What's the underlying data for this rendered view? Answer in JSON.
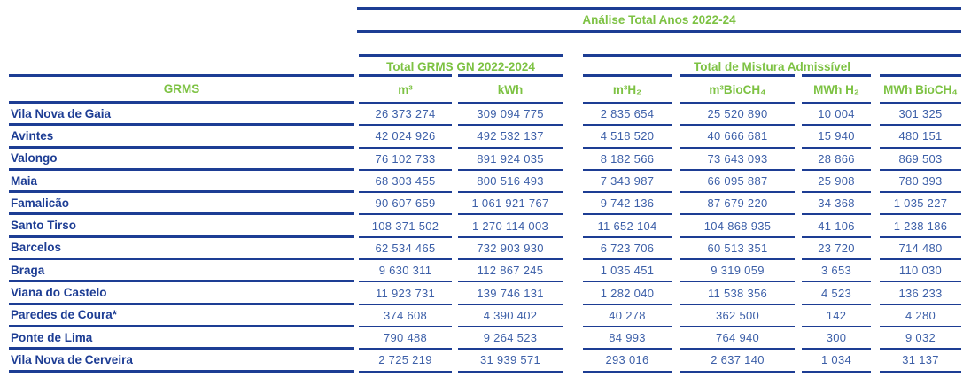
{
  "table": {
    "title": "Análise Total Anos 2022-24",
    "group_left": "Total GRMS GN 2022-2024",
    "group_right": "Total de Mistura Admissível",
    "columns": [
      "GRMS",
      "m³",
      "kWh",
      "m³H₂",
      "m³BioCH₄",
      "MWh H₂",
      "MWh BioCH₄"
    ],
    "rows": [
      [
        "Vila Nova de Gaia",
        "26 373 274",
        "309 094 775",
        "2 835 654",
        "25 520 890",
        "10 004",
        "301 325"
      ],
      [
        "Avintes",
        "42 024 926",
        "492 532 137",
        "4 518 520",
        "40 666 681",
        "15 940",
        "480 151"
      ],
      [
        "Valongo",
        "76 102 733",
        "891 924 035",
        "8 182 566",
        "73 643 093",
        "28 866",
        "869 503"
      ],
      [
        "Maia",
        "68 303 455",
        "800 516 493",
        "7 343 987",
        "66 095 887",
        "25 908",
        "780 393"
      ],
      [
        "Famalicão",
        "90 607 659",
        "1 061 921 767",
        "9 742 136",
        "87 679 220",
        "34 368",
        "1 035 227"
      ],
      [
        "Santo Tirso",
        "108 371 502",
        "1 270 114 003",
        "11 652 104",
        "104 868 935",
        "41 106",
        "1 238 186"
      ],
      [
        "Barcelos",
        "62 534 465",
        "732 903 930",
        "6 723 706",
        "60 513 351",
        "23 720",
        "714 480"
      ],
      [
        "Braga",
        "9 630 311",
        "112 867 245",
        "1 035 451",
        "9 319 059",
        "3 653",
        "110 030"
      ],
      [
        "Viana do Castelo",
        "11 923 731",
        "139 746 131",
        "1 282 040",
        "11 538 356",
        "4 523",
        "136 233"
      ],
      [
        "Paredes de Coura*",
        "374 608",
        "4 390 402",
        "40 278",
        "362 500",
        "142",
        "4 280"
      ],
      [
        "Ponte de Lima",
        "790 488",
        "9 264 523",
        "84 993",
        "764 940",
        "300",
        "9 032"
      ],
      [
        "Vila Nova de Cerveira",
        "2 725 219",
        "31 939 571",
        "293 016",
        "2 637 140",
        "1 034",
        "31 137"
      ]
    ]
  },
  "colors": {
    "header_green": "#7dc243",
    "line_navy": "#1d3d94",
    "value_blue": "#3c5fa8"
  }
}
